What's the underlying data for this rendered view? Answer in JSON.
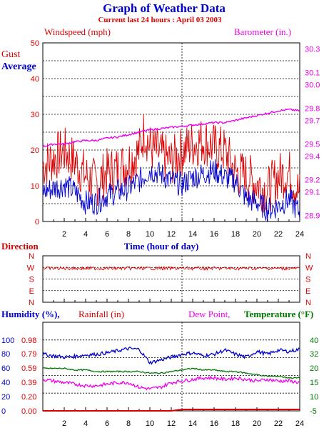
{
  "header": {
    "title": "Graph of Weather Data",
    "subtitle": "Current last 24 hours : April 03 2003"
  },
  "colors": {
    "red": "#dd0000",
    "blue": "#0000cc",
    "magenta": "#ee00ee",
    "green": "#007700",
    "black": "#000000"
  },
  "chart_data": [
    {
      "type": "line",
      "panel": "wind",
      "title": "",
      "left_label": "Windspeed (mph)",
      "right_label": "Barometer (in.)",
      "legend": [
        "Gust",
        "Average"
      ],
      "xlabel": "Time (hour of day)",
      "xlim": [
        0,
        24
      ],
      "x_ticks": [
        "2",
        "4",
        "6",
        "8",
        "10",
        "12",
        "14",
        "16",
        "18",
        "20",
        "22",
        "24"
      ],
      "y_left_lim": [
        0,
        50
      ],
      "y_left_ticks": [
        "0",
        "10",
        "20",
        "30",
        "40",
        "50"
      ],
      "y_right_lim": [
        28.85,
        30.35
      ],
      "y_right_ticks": [
        "28.9",
        "29.1",
        "29.2",
        "29.4",
        "29.5",
        "29.7",
        "29.8",
        "30.0",
        "30.1",
        "30.3"
      ],
      "grid": true,
      "series": [
        {
          "name": "Gust",
          "color": "#dd0000",
          "x": [
            0,
            1,
            2,
            3,
            4,
            5,
            6,
            7,
            8,
            9,
            9.5,
            10,
            11,
            12,
            13,
            14,
            15,
            16,
            17,
            18,
            19,
            20,
            21,
            22,
            23,
            24
          ],
          "y": [
            15,
            17,
            19,
            16,
            12,
            10,
            13,
            14,
            16,
            19,
            25,
            20,
            18,
            16,
            19,
            21,
            22,
            20,
            19,
            13,
            12,
            10,
            8,
            12,
            13,
            7
          ]
        },
        {
          "name": "Average",
          "color": "#0000cc",
          "x": [
            0,
            1,
            2,
            3,
            4,
            5,
            6,
            7,
            8,
            9,
            10,
            11,
            12,
            13,
            14,
            15,
            16,
            17,
            18,
            19,
            20,
            21,
            22,
            23,
            24
          ],
          "y": [
            8,
            9,
            10,
            8,
            5,
            5,
            7,
            8,
            9,
            11,
            14,
            13,
            11,
            10,
            12,
            13,
            14,
            12,
            11,
            6,
            5,
            3,
            4,
            6,
            2
          ]
        },
        {
          "name": "Barometer",
          "color": "#ee00ee",
          "axis": "right",
          "x": [
            0,
            1,
            2,
            3,
            4,
            5,
            6,
            7,
            8,
            9,
            10,
            11,
            12,
            13,
            14,
            15,
            16,
            17,
            18,
            19,
            20,
            21,
            22,
            23,
            24
          ],
          "y": [
            29.48,
            29.5,
            29.5,
            29.52,
            29.53,
            29.53,
            29.55,
            29.56,
            29.58,
            29.6,
            29.62,
            29.63,
            29.64,
            29.65,
            29.66,
            29.67,
            29.68,
            29.68,
            29.7,
            29.72,
            29.74,
            29.76,
            29.78,
            29.79,
            29.78
          ]
        }
      ]
    },
    {
      "type": "line",
      "panel": "direction",
      "title": "",
      "left_label": "Direction",
      "xlim": [
        0,
        24
      ],
      "y_ticks": [
        "N",
        "W",
        "S",
        "E",
        "N"
      ],
      "series": [
        {
          "name": "Direction",
          "color": "#dd0000",
          "x": [
            0,
            6,
            12,
            18,
            24
          ],
          "y": [
            "W",
            "W",
            "W",
            "W",
            "W"
          ]
        }
      ]
    },
    {
      "type": "line",
      "panel": "humidity",
      "title": "",
      "left_label_1": "Humidity (%),",
      "left_label_2": "Rainfall (in)",
      "right_label_1": "Dew Point,",
      "right_label_2": "Temperature (°F)",
      "xlim": [
        0,
        24
      ],
      "x_ticks": [
        "2",
        "4",
        "6",
        "8",
        "10",
        "12",
        "14",
        "16",
        "18",
        "20",
        "22",
        "24"
      ],
      "humidity_ticks": [
        "0",
        "20",
        "40",
        "60",
        "80",
        "100"
      ],
      "rain_ticks": [
        "0.00",
        "0.20",
        "0.39",
        "0.59",
        "0.79",
        "0.98"
      ],
      "temp_ticks": [
        "-5",
        "10",
        "15",
        "20",
        "32",
        "40"
      ],
      "grid": true,
      "series": [
        {
          "name": "Humidity",
          "color": "#0000cc",
          "x": [
            0,
            1,
            2,
            3,
            4,
            5,
            6,
            7,
            8,
            9,
            10,
            11,
            12,
            13,
            14,
            15,
            16,
            17,
            18,
            19,
            20,
            21,
            22,
            23,
            24
          ],
          "y": [
            80,
            78,
            76,
            77,
            79,
            80,
            82,
            85,
            88,
            87,
            68,
            72,
            76,
            80,
            82,
            78,
            80,
            86,
            80,
            76,
            84,
            80,
            86,
            84,
            87
          ]
        },
        {
          "name": "Rainfall",
          "color": "#dd0000",
          "x": [
            0,
            12,
            13,
            24
          ],
          "y": [
            0,
            0,
            0.02,
            0.02
          ]
        },
        {
          "name": "Dew Point",
          "color": "#ee00ee",
          "x": [
            0,
            1,
            2,
            3,
            4,
            5,
            6,
            7,
            8,
            9,
            10,
            11,
            12,
            13,
            14,
            15,
            16,
            17,
            18,
            19,
            20,
            21,
            22,
            23,
            24
          ],
          "y": [
            15,
            14,
            13,
            12,
            11,
            11,
            12,
            13,
            13,
            10,
            9,
            10,
            13,
            14,
            15,
            16,
            16,
            15,
            16,
            15,
            14,
            15,
            14,
            14,
            13
          ]
        },
        {
          "name": "Temperature",
          "color": "#007700",
          "x": [
            0,
            1,
            2,
            3,
            4,
            5,
            6,
            7,
            8,
            9,
            10,
            11,
            12,
            13,
            14,
            15,
            16,
            17,
            18,
            19,
            20,
            21,
            22,
            23,
            24
          ],
          "y": [
            22,
            22,
            22,
            21,
            21,
            20,
            20,
            20,
            20,
            20,
            19,
            19,
            20,
            21,
            22,
            21,
            21,
            20,
            20,
            19,
            18,
            17,
            17,
            16,
            16
          ]
        }
      ]
    }
  ]
}
